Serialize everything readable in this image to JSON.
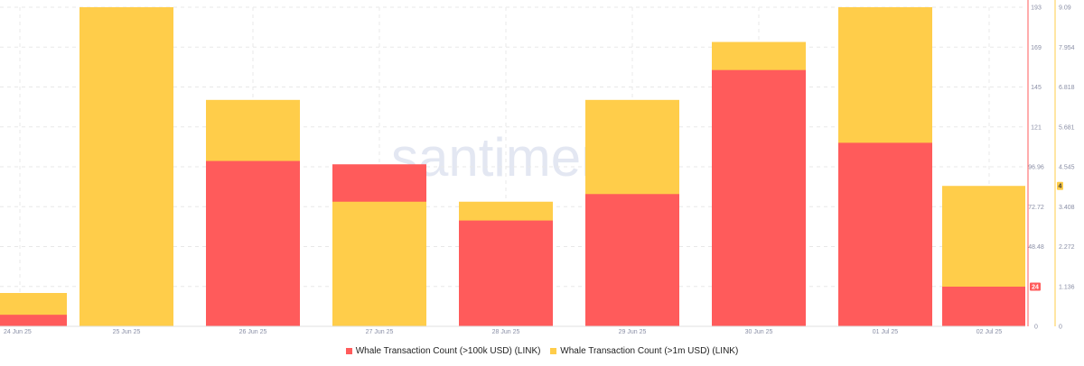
{
  "watermark": "santiment",
  "colors": {
    "s1": "#ff5b5b",
    "s2": "#ffcd4a",
    "grid": "#e8e8e8",
    "axis": "#8a8fa6"
  },
  "chart_data": {
    "type": "bar",
    "stacked": true,
    "categories": [
      "24 Jun 25",
      "25 Jun 25",
      "26 Jun 25",
      "27 Jun 25",
      "28 Jun 25",
      "29 Jun 25",
      "30 Jun 25",
      "01 Jul 25",
      "02 Jul 25"
    ],
    "series": [
      {
        "name": "Whale Transaction Count (>100k USD) (LINK)",
        "values": [
          7,
          193,
          100,
          98,
          64,
          80,
          155,
          111,
          24
        ],
        "axis": "left",
        "color": "#ff5b5b"
      },
      {
        "name": "Whale Transaction Count (>1m USD) (LINK)",
        "values": [
          0.95,
          9.09,
          6.45,
          3.55,
          3.55,
          6.45,
          8.1,
          9.09,
          4
        ],
        "axis": "right",
        "color": "#ffcd4a"
      }
    ],
    "left_axis": {
      "ticks": [
        "0",
        "24",
        "48.48",
        "72.72",
        "96.96",
        "121",
        "145",
        "169",
        "193"
      ],
      "range": [
        0,
        193
      ]
    },
    "right_axis": {
      "ticks": [
        "0",
        "1.136",
        "2.272",
        "3.408",
        "4.545",
        "5.681",
        "6.818",
        "7.954",
        "9.09"
      ],
      "range": [
        0,
        9.09
      ]
    },
    "current_value_labels": {
      "left": "24",
      "right": "4"
    },
    "legend_position": "bottom"
  }
}
